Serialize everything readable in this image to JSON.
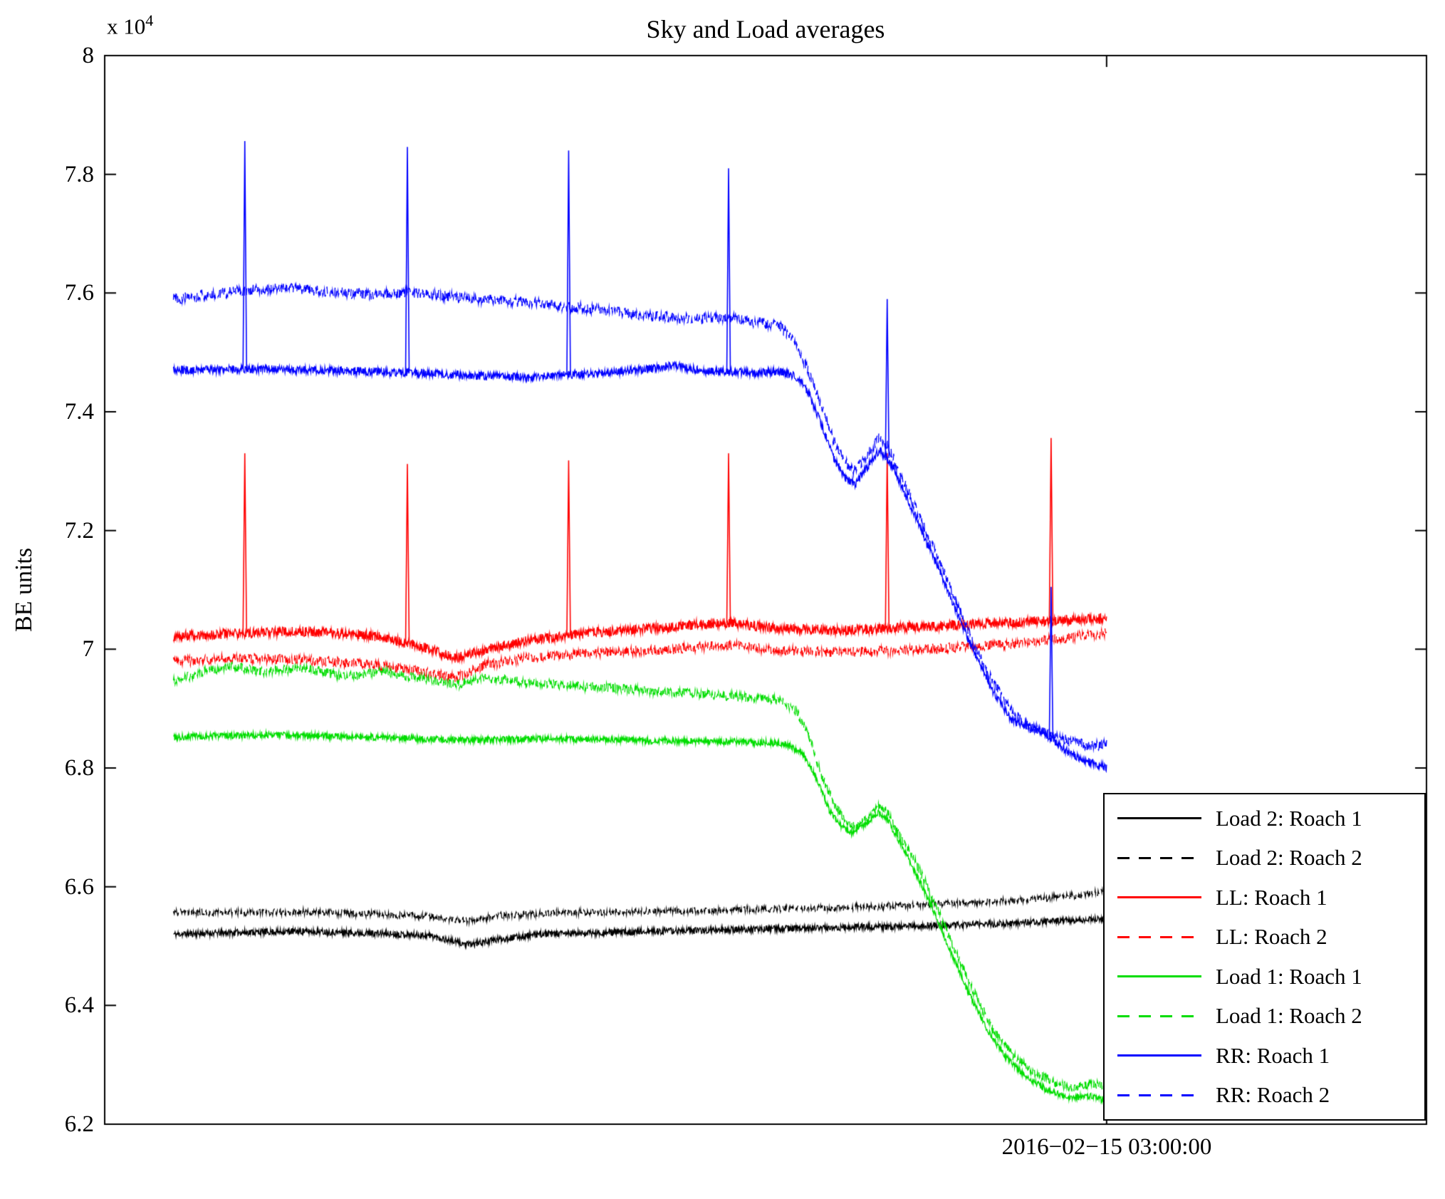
{
  "chart_data": {
    "type": "line",
    "title": "Sky and Load averages",
    "ylabel": "BE units",
    "xlabel": "",
    "y_scale": {
      "prefix": "x 10",
      "exp": "4"
    },
    "ylim": [
      6.2,
      8.0
    ],
    "grid": false,
    "legend_position": "bottom-right",
    "yticks": [
      {
        "v": 6.2,
        "label": "6.2"
      },
      {
        "v": 6.4,
        "label": "6.4"
      },
      {
        "v": 6.6,
        "label": "6.6"
      },
      {
        "v": 6.8,
        "label": "6.8"
      },
      {
        "v": 7.0,
        "label": "7"
      },
      {
        "v": 7.2,
        "label": "7.2"
      },
      {
        "v": 7.4,
        "label": "7.4"
      },
      {
        "v": 7.6,
        "label": "7.6"
      },
      {
        "v": 7.8,
        "label": "7.8"
      },
      {
        "v": 8.0,
        "label": "8"
      }
    ],
    "xticks": [
      {
        "pos": 0.758,
        "label": "2016−02−15 03:00:00"
      }
    ],
    "series": [
      {
        "name": "Load 2: Roach 1",
        "color": "#000000",
        "style": "solid",
        "noise": 0.0055,
        "points": [
          [
            0.052,
            6.52
          ],
          [
            0.1,
            6.523
          ],
          [
            0.15,
            6.525
          ],
          [
            0.2,
            6.522
          ],
          [
            0.245,
            6.518
          ],
          [
            0.275,
            6.502
          ],
          [
            0.3,
            6.512
          ],
          [
            0.33,
            6.52
          ],
          [
            0.4,
            6.524
          ],
          [
            0.48,
            6.528
          ],
          [
            0.55,
            6.531
          ],
          [
            0.62,
            6.534
          ],
          [
            0.68,
            6.538
          ],
          [
            0.72,
            6.542
          ],
          [
            0.758,
            6.546
          ]
        ]
      },
      {
        "name": "Load 2: Roach 2",
        "color": "#000000",
        "style": "dashed",
        "noise": 0.0055,
        "points": [
          [
            0.052,
            6.557
          ],
          [
            0.1,
            6.556
          ],
          [
            0.15,
            6.558
          ],
          [
            0.2,
            6.554
          ],
          [
            0.245,
            6.55
          ],
          [
            0.275,
            6.542
          ],
          [
            0.3,
            6.552
          ],
          [
            0.35,
            6.556
          ],
          [
            0.42,
            6.558
          ],
          [
            0.5,
            6.562
          ],
          [
            0.58,
            6.566
          ],
          [
            0.64,
            6.572
          ],
          [
            0.7,
            6.578
          ],
          [
            0.73,
            6.584
          ],
          [
            0.758,
            6.592
          ]
        ]
      },
      {
        "name": "LL: Roach 1",
        "color": "#ff0000",
        "style": "solid",
        "noise": 0.0085,
        "points": [
          [
            0.052,
            7.022
          ],
          [
            0.1,
            7.027
          ],
          [
            0.15,
            7.03
          ],
          [
            0.2,
            7.024
          ],
          [
            0.24,
            7.005
          ],
          [
            0.265,
            6.985
          ],
          [
            0.29,
            7.0
          ],
          [
            0.32,
            7.015
          ],
          [
            0.37,
            7.028
          ],
          [
            0.43,
            7.038
          ],
          [
            0.47,
            7.045
          ],
          [
            0.51,
            7.035
          ],
          [
            0.56,
            7.032
          ],
          [
            0.62,
            7.038
          ],
          [
            0.68,
            7.045
          ],
          [
            0.72,
            7.048
          ],
          [
            0.758,
            7.052
          ]
        ],
        "spikes": [
          [
            0.106,
            7.33
          ],
          [
            0.229,
            7.312
          ],
          [
            0.351,
            7.318
          ],
          [
            0.472,
            7.33
          ],
          [
            0.592,
            7.33
          ],
          [
            0.716,
            7.356
          ]
        ]
      },
      {
        "name": "LL: Roach 2",
        "color": "#ff0000",
        "style": "dashed",
        "noise": 0.0085,
        "points": [
          [
            0.052,
            6.98
          ],
          [
            0.1,
            6.985
          ],
          [
            0.15,
            6.982
          ],
          [
            0.2,
            6.975
          ],
          [
            0.24,
            6.962
          ],
          [
            0.265,
            6.952
          ],
          [
            0.29,
            6.975
          ],
          [
            0.33,
            6.988
          ],
          [
            0.38,
            6.995
          ],
          [
            0.43,
            7.0
          ],
          [
            0.47,
            7.008
          ],
          [
            0.51,
            6.998
          ],
          [
            0.56,
            6.995
          ],
          [
            0.62,
            7.0
          ],
          [
            0.68,
            7.008
          ],
          [
            0.72,
            7.018
          ],
          [
            0.758,
            7.028
          ]
        ]
      },
      {
        "name": "Load 1: Roach 1",
        "color": "#00dd00",
        "style": "solid",
        "noise": 0.0055,
        "points": [
          [
            0.052,
            6.852
          ],
          [
            0.12,
            6.856
          ],
          [
            0.2,
            6.852
          ],
          [
            0.27,
            6.847
          ],
          [
            0.34,
            6.849
          ],
          [
            0.42,
            6.846
          ],
          [
            0.5,
            6.843
          ],
          [
            0.515,
            6.84
          ],
          [
            0.528,
            6.825
          ],
          [
            0.538,
            6.785
          ],
          [
            0.548,
            6.73
          ],
          [
            0.556,
            6.705
          ],
          [
            0.565,
            6.69
          ],
          [
            0.575,
            6.705
          ],
          [
            0.585,
            6.725
          ],
          [
            0.592,
            6.715
          ],
          [
            0.6,
            6.68
          ],
          [
            0.61,
            6.64
          ],
          [
            0.625,
            6.57
          ],
          [
            0.64,
            6.49
          ],
          [
            0.655,
            6.415
          ],
          [
            0.67,
            6.35
          ],
          [
            0.685,
            6.305
          ],
          [
            0.7,
            6.275
          ],
          [
            0.715,
            6.255
          ],
          [
            0.73,
            6.245
          ],
          [
            0.745,
            6.248
          ],
          [
            0.758,
            6.24
          ]
        ]
      },
      {
        "name": "Load 1: Roach 2",
        "color": "#00dd00",
        "style": "dashed",
        "noise": 0.008,
        "points": [
          [
            0.052,
            6.948
          ],
          [
            0.07,
            6.958
          ],
          [
            0.095,
            6.972
          ],
          [
            0.12,
            6.962
          ],
          [
            0.15,
            6.968
          ],
          [
            0.18,
            6.955
          ],
          [
            0.21,
            6.962
          ],
          [
            0.24,
            6.95
          ],
          [
            0.265,
            6.94
          ],
          [
            0.29,
            6.952
          ],
          [
            0.32,
            6.944
          ],
          [
            0.36,
            6.938
          ],
          [
            0.4,
            6.932
          ],
          [
            0.44,
            6.926
          ],
          [
            0.48,
            6.92
          ],
          [
            0.51,
            6.915
          ],
          [
            0.522,
            6.9
          ],
          [
            0.532,
            6.86
          ],
          [
            0.542,
            6.79
          ],
          [
            0.552,
            6.74
          ],
          [
            0.56,
            6.715
          ],
          [
            0.568,
            6.7
          ],
          [
            0.576,
            6.712
          ],
          [
            0.586,
            6.735
          ],
          [
            0.593,
            6.722
          ],
          [
            0.6,
            6.69
          ],
          [
            0.612,
            6.648
          ],
          [
            0.627,
            6.578
          ],
          [
            0.642,
            6.498
          ],
          [
            0.657,
            6.425
          ],
          [
            0.672,
            6.36
          ],
          [
            0.687,
            6.315
          ],
          [
            0.702,
            6.288
          ],
          [
            0.717,
            6.272
          ],
          [
            0.732,
            6.262
          ],
          [
            0.747,
            6.268
          ],
          [
            0.758,
            6.262
          ]
        ]
      },
      {
        "name": "RR: Roach 1",
        "color": "#0000ff",
        "style": "solid",
        "noise": 0.007,
        "points": [
          [
            0.052,
            7.47
          ],
          [
            0.12,
            7.472
          ],
          [
            0.2,
            7.468
          ],
          [
            0.27,
            7.462
          ],
          [
            0.32,
            7.458
          ],
          [
            0.37,
            7.464
          ],
          [
            0.41,
            7.472
          ],
          [
            0.43,
            7.478
          ],
          [
            0.455,
            7.468
          ],
          [
            0.49,
            7.466
          ],
          [
            0.51,
            7.468
          ],
          [
            0.522,
            7.46
          ],
          [
            0.532,
            7.435
          ],
          [
            0.542,
            7.38
          ],
          [
            0.552,
            7.32
          ],
          [
            0.56,
            7.29
          ],
          [
            0.568,
            7.278
          ],
          [
            0.576,
            7.305
          ],
          [
            0.586,
            7.335
          ],
          [
            0.593,
            7.32
          ],
          [
            0.6,
            7.29
          ],
          [
            0.61,
            7.24
          ],
          [
            0.62,
            7.19
          ],
          [
            0.632,
            7.13
          ],
          [
            0.645,
            7.06
          ],
          [
            0.658,
            6.995
          ],
          [
            0.672,
            6.93
          ],
          [
            0.686,
            6.88
          ],
          [
            0.7,
            6.87
          ],
          [
            0.716,
            6.85
          ],
          [
            0.73,
            6.825
          ],
          [
            0.745,
            6.81
          ],
          [
            0.758,
            6.8
          ]
        ],
        "spikes": [
          [
            0.106,
            7.856
          ],
          [
            0.229,
            7.846
          ],
          [
            0.351,
            7.84
          ],
          [
            0.472,
            7.81
          ],
          [
            0.592,
            7.59
          ],
          [
            0.716,
            7.105
          ]
        ]
      },
      {
        "name": "RR: Roach 2",
        "color": "#0000ff",
        "style": "dashed",
        "noise": 0.009,
        "points": [
          [
            0.052,
            7.59
          ],
          [
            0.08,
            7.598
          ],
          [
            0.11,
            7.605
          ],
          [
            0.14,
            7.608
          ],
          [
            0.17,
            7.602
          ],
          [
            0.2,
            7.598
          ],
          [
            0.24,
            7.6
          ],
          [
            0.27,
            7.592
          ],
          [
            0.3,
            7.588
          ],
          [
            0.33,
            7.582
          ],
          [
            0.36,
            7.575
          ],
          [
            0.39,
            7.568
          ],
          [
            0.42,
            7.56
          ],
          [
            0.45,
            7.556
          ],
          [
            0.47,
            7.56
          ],
          [
            0.49,
            7.552
          ],
          [
            0.51,
            7.545
          ],
          [
            0.522,
            7.52
          ],
          [
            0.532,
            7.47
          ],
          [
            0.542,
            7.41
          ],
          [
            0.552,
            7.35
          ],
          [
            0.56,
            7.315
          ],
          [
            0.568,
            7.3
          ],
          [
            0.576,
            7.325
          ],
          [
            0.586,
            7.358
          ],
          [
            0.593,
            7.34
          ],
          [
            0.6,
            7.305
          ],
          [
            0.61,
            7.255
          ],
          [
            0.62,
            7.205
          ],
          [
            0.632,
            7.145
          ],
          [
            0.645,
            7.075
          ],
          [
            0.658,
            7.008
          ],
          [
            0.672,
            6.945
          ],
          [
            0.686,
            6.895
          ],
          [
            0.7,
            6.868
          ],
          [
            0.716,
            6.858
          ],
          [
            0.73,
            6.845
          ],
          [
            0.745,
            6.838
          ],
          [
            0.758,
            6.84
          ]
        ]
      }
    ]
  }
}
